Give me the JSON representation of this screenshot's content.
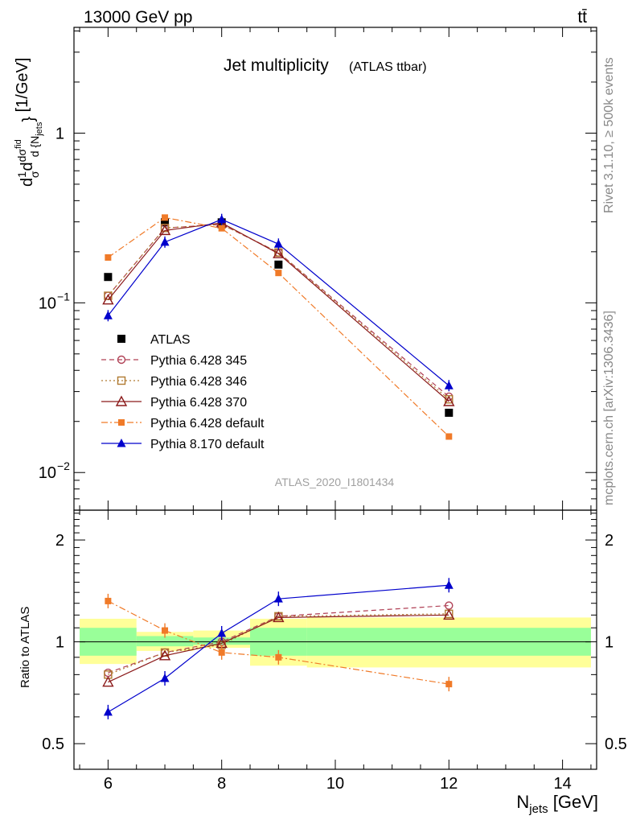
{
  "header": {
    "energy_label": "13000 GeV pp",
    "process_label": "tt̄"
  },
  "side_labels": {
    "rivet": "Rivet 3.1.10, ≥ 500k events",
    "mcplots": "mcplots.cern.ch [arXiv:1306.3436]"
  },
  "chart_data": [
    {
      "type": "line",
      "title": "Jet multiplicity",
      "subtitle": "(ATLAS ttbar)",
      "watermark": "ATLAS_2020_I1801434",
      "ylabel": "d(1/σ)dσ^fid / d{N_jets} [1/GeV]",
      "yscale": "log",
      "ylim": [
        0.006,
        4.2
      ],
      "xlim": [
        5.4,
        14.6
      ],
      "yticks": [
        {
          "value": 1,
          "label": "1"
        },
        {
          "value": 0.1,
          "label": "10",
          "exp": "−1"
        },
        {
          "value": 0.01,
          "label": "10",
          "exp": "−2"
        }
      ],
      "legend_position": "left",
      "x": [
        6,
        7,
        8,
        9,
        12
      ],
      "series": [
        {
          "name": "ATLAS",
          "color": "#000000",
          "marker": "square-filled",
          "line": "none",
          "values": [
            0.142,
            0.298,
            0.298,
            0.168,
            0.0225
          ]
        },
        {
          "name": "Pythia 6.428 345",
          "color": "#b04055",
          "marker": "circle-open",
          "line": "dashed",
          "values": [
            0.11,
            0.276,
            0.29,
            0.198,
            0.028
          ]
        },
        {
          "name": "Pythia 6.428 346",
          "color": "#b07a30",
          "marker": "square-open",
          "line": "dotted",
          "values": [
            0.11,
            0.276,
            0.29,
            0.198,
            0.027
          ]
        },
        {
          "name": "Pythia 6.428 370",
          "color": "#8b1a1a",
          "marker": "triangle-open",
          "line": "solid",
          "values": [
            0.104,
            0.267,
            0.296,
            0.195,
            0.0262
          ]
        },
        {
          "name": "Pythia 6.428 default",
          "color": "#f07a28",
          "marker": "square-small",
          "line": "dashdot",
          "values": [
            0.185,
            0.318,
            0.275,
            0.15,
            0.0163
          ]
        },
        {
          "name": "Pythia 8.170 default",
          "color": "#0000cc",
          "marker": "triangle-filled",
          "line": "solid",
          "values": [
            0.084,
            0.228,
            0.31,
            0.222,
            0.0325
          ]
        }
      ]
    },
    {
      "type": "line",
      "ylabel": "Ratio to ATLAS",
      "xlabel": "N_jets [GeV]",
      "yscale": "log",
      "ylim": [
        0.42,
        2.45
      ],
      "xlim": [
        5.4,
        14.6
      ],
      "yticks": [
        0.5,
        1,
        2
      ],
      "xticks": [
        6,
        8,
        10,
        12,
        14
      ],
      "x": [
        6,
        7,
        8,
        9,
        12
      ],
      "uncertainty_bands": [
        {
          "xmin": 5.5,
          "xmax": 6.5,
          "green": [
            0.91,
            1.1
          ],
          "yellow": [
            0.86,
            1.17
          ]
        },
        {
          "xmin": 6.5,
          "xmax": 7.5,
          "green": [
            0.97,
            1.04
          ],
          "yellow": [
            0.94,
            1.07
          ]
        },
        {
          "xmin": 7.5,
          "xmax": 8.5,
          "green": [
            0.98,
            1.03
          ],
          "yellow": [
            0.96,
            1.08
          ]
        },
        {
          "xmin": 8.5,
          "xmax": 9.5,
          "green": [
            0.91,
            1.1
          ],
          "yellow": [
            0.85,
            1.17
          ]
        },
        {
          "xmin": 9.5,
          "xmax": 14.5,
          "green": [
            0.91,
            1.1
          ],
          "yellow": [
            0.84,
            1.18
          ]
        }
      ],
      "series": [
        {
          "name": "Pythia 6.428 345",
          "values": [
            0.81,
            0.93,
            1.0,
            1.19,
            1.28
          ]
        },
        {
          "name": "Pythia 6.428 346",
          "values": [
            0.8,
            0.93,
            0.98,
            1.19,
            1.21
          ]
        },
        {
          "name": "Pythia 6.428 370",
          "values": [
            0.76,
            0.91,
            0.99,
            1.18,
            1.2
          ]
        },
        {
          "name": "Pythia 6.428 default",
          "values": [
            1.32,
            1.08,
            0.93,
            0.9,
            0.75
          ]
        },
        {
          "name": "Pythia 8.170 default",
          "values": [
            0.62,
            0.78,
            1.06,
            1.34,
            1.47
          ]
        }
      ]
    }
  ]
}
